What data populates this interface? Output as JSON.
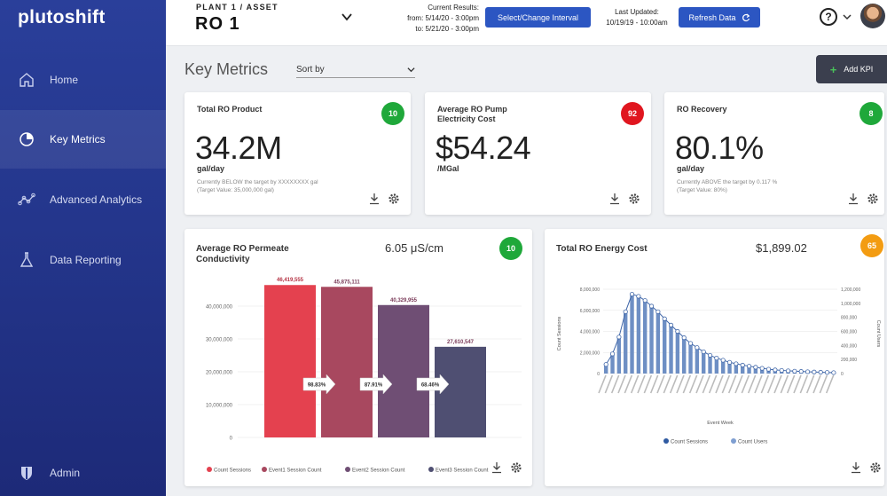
{
  "app": {
    "logo": "plutoshift"
  },
  "sidebar": {
    "items": [
      {
        "label": "Home",
        "icon": "home-icon"
      },
      {
        "label": "Key Metrics",
        "icon": "pie-chart-icon"
      },
      {
        "label": "Advanced Analytics",
        "icon": "analytics-icon"
      },
      {
        "label": "Data Reporting",
        "icon": "flask-icon"
      },
      {
        "label": "Admin",
        "icon": "shield-icon"
      }
    ]
  },
  "header": {
    "breadcrumb": "PLANT 1  /  ASSET",
    "asset": "RO 1",
    "current_results": {
      "heading": "Current Results:",
      "from": "from: 5/14/20 - 3:00pm",
      "to": "to: 5/21/20 - 3:00pm"
    },
    "interval_button": "Select/Change Interval",
    "last_updated": {
      "heading": "Last Updated:",
      "value": "10/19/19 - 10:00am"
    },
    "refresh_button": "Refresh Data",
    "help": "?"
  },
  "main": {
    "title": "Key Metrics",
    "sort_by": "Sort by",
    "add_kpi": "Add KPI"
  },
  "colors": {
    "accent": "#2c56c2",
    "green": "#1fa83a",
    "red": "#e0161f",
    "orange": "#f39c12"
  },
  "kpis": [
    {
      "title": "Total RO Product",
      "badge": "10",
      "badge_color": "#1fa83a",
      "value": "34.2M",
      "unit": "gal/day",
      "note1": "Currently BELOW the target by XXXXXXXX gal",
      "note2": "(Target Value: 35,000,000 gal)"
    },
    {
      "title": "Average RO Pump Electricity Cost",
      "badge": "92",
      "badge_color": "#e0161f",
      "value": "$54.24",
      "unit": "/MGal",
      "note1": "",
      "note2": ""
    },
    {
      "title": "RO Recovery",
      "badge": "8",
      "badge_color": "#1fa83a",
      "value": "80.1%",
      "unit": "gal/day",
      "note1": "Currently ABOVE the target by 0.117 %",
      "note2": "(Target Value: 80%)"
    }
  ],
  "charts": {
    "conductivity": {
      "title": "Average RO Permeate Conductivity",
      "headline": "6.05 μS/cm",
      "badge": "10"
    },
    "energy": {
      "title": "Total RO Energy Cost",
      "headline": "$1,899.02",
      "badge": "65"
    }
  },
  "chart_data": [
    {
      "type": "bar",
      "categories": [
        "Count Sessions",
        "Event1 Session Count",
        "Event2 Session Count",
        "Event3 Session Count"
      ],
      "values": [
        46419555,
        45875111,
        40329955,
        27610547
      ],
      "value_labels": [
        "46,419,555",
        "45,875,111",
        "40,329,955",
        "27,610,547"
      ],
      "colors": [
        "#e4414f",
        "#a8485f",
        "#6f4e74",
        "#4f4f72"
      ],
      "conversion_labels": [
        "98.83%",
        "87.91%",
        "68.46%"
      ],
      "y_ticks": [
        "0",
        "10,000,000",
        "20,000,000",
        "30,000,000",
        "40,000,000"
      ],
      "ylim": [
        0,
        50000000
      ],
      "legend": [
        "Count Sessions",
        "Event1 Session Count",
        "Event2 Session Count",
        "Event3 Session Count"
      ],
      "legend_position": "bottom",
      "title": "Average RO Permeate Conductivity"
    },
    {
      "type": "bar",
      "title": "Total RO Energy Cost",
      "xlabel": "Event Week",
      "ylabel": "Count Sessions",
      "y2label": "Count Users",
      "y_ticks": [
        "0",
        "2,000,000",
        "4,000,000",
        "6,000,000",
        "8,000,000"
      ],
      "ylim": [
        0,
        8000000
      ],
      "y2_ticks": [
        "0",
        "200,000",
        "400,000",
        "600,000",
        "800,000",
        "1,000,000",
        "1,200,000"
      ],
      "y2lim": [
        0,
        1200000
      ],
      "series": [
        {
          "name": "Count Sessions",
          "kind": "bar",
          "color": "#6e8fc4",
          "values": [
            800000,
            1800000,
            3500000,
            6000000,
            7600000,
            7400000,
            7000000,
            6500000,
            5900000,
            5200000,
            4600000,
            4000000,
            3400000,
            2900000,
            2500000,
            2100000,
            1800000,
            1500000,
            1300000,
            1100000,
            950000,
            820000,
            700000,
            600000,
            500000,
            420000,
            360000,
            300000,
            260000,
            220000,
            190000,
            160000,
            140000,
            120000,
            100000,
            80000
          ]
        },
        {
          "name": "Count Users",
          "kind": "line",
          "color": "#3f66a8",
          "values": [
            130000,
            280000,
            520000,
            880000,
            1130000,
            1100000,
            1040000,
            960000,
            880000,
            780000,
            690000,
            600000,
            510000,
            430000,
            370000,
            310000,
            260000,
            220000,
            190000,
            160000,
            140000,
            120000,
            105000,
            90000,
            75000,
            62000,
            52000,
            45000,
            39000,
            34000,
            30000,
            26000,
            22000,
            19000,
            16000,
            13000
          ]
        }
      ],
      "legend": [
        "Count Sessions",
        "Count Users"
      ],
      "legend_position": "bottom"
    }
  ]
}
